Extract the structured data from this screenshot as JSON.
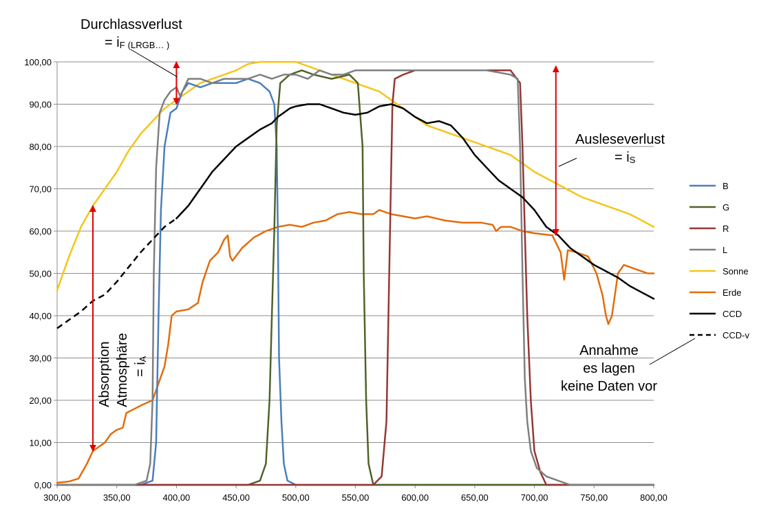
{
  "chart_data": {
    "type": "line",
    "xlim": [
      300,
      800
    ],
    "ylim": [
      0,
      100
    ],
    "grid": true,
    "legend_position": "right",
    "x_ticks": [
      "300,00",
      "350,00",
      "400,00",
      "450,00",
      "500,00",
      "550,00",
      "600,00",
      "650,00",
      "700,00",
      "750,00",
      "800,00"
    ],
    "y_ticks": [
      "0,00",
      "10,00",
      "20,00",
      "30,00",
      "40,00",
      "50,00",
      "60,00",
      "70,00",
      "80,00",
      "90,00",
      "100,00"
    ],
    "series": [
      {
        "name": "B",
        "color": "#4A7EBB",
        "dash": false,
        "points": [
          [
            300,
            0
          ],
          [
            370,
            0
          ],
          [
            380,
            1
          ],
          [
            383,
            10
          ],
          [
            385,
            40
          ],
          [
            387,
            65
          ],
          [
            390,
            80
          ],
          [
            395,
            88
          ],
          [
            400,
            89
          ],
          [
            405,
            93
          ],
          [
            410,
            95
          ],
          [
            420,
            94
          ],
          [
            430,
            95
          ],
          [
            440,
            95
          ],
          [
            450,
            95
          ],
          [
            460,
            96
          ],
          [
            470,
            95
          ],
          [
            478,
            93
          ],
          [
            482,
            90
          ],
          [
            484,
            80
          ],
          [
            485,
            60
          ],
          [
            486,
            30
          ],
          [
            488,
            15
          ],
          [
            490,
            5
          ],
          [
            493,
            1
          ],
          [
            500,
            0
          ],
          [
            800,
            0
          ]
        ]
      },
      {
        "name": "G",
        "color": "#4F6228",
        "dash": false,
        "points": [
          [
            300,
            0
          ],
          [
            460,
            0
          ],
          [
            470,
            1
          ],
          [
            475,
            5
          ],
          [
            478,
            20
          ],
          [
            480,
            40
          ],
          [
            482,
            60
          ],
          [
            484,
            85
          ],
          [
            487,
            95
          ],
          [
            495,
            97
          ],
          [
            505,
            98
          ],
          [
            515,
            97
          ],
          [
            530,
            96
          ],
          [
            545,
            97
          ],
          [
            552,
            95
          ],
          [
            556,
            80
          ],
          [
            557,
            50
          ],
          [
            559,
            20
          ],
          [
            561,
            5
          ],
          [
            565,
            0
          ],
          [
            800,
            0
          ]
        ]
      },
      {
        "name": "R",
        "color": "#943634",
        "dash": false,
        "points": [
          [
            300,
            0
          ],
          [
            550,
            0
          ],
          [
            565,
            0
          ],
          [
            572,
            2
          ],
          [
            576,
            15
          ],
          [
            579,
            60
          ],
          [
            581,
            90
          ],
          [
            583,
            96
          ],
          [
            590,
            97
          ],
          [
            600,
            98
          ],
          [
            620,
            98
          ],
          [
            640,
            98
          ],
          [
            660,
            98
          ],
          [
            680,
            98
          ],
          [
            688,
            95
          ],
          [
            690,
            80
          ],
          [
            692,
            60
          ],
          [
            694,
            40
          ],
          [
            697,
            20
          ],
          [
            700,
            8
          ],
          [
            705,
            3
          ],
          [
            710,
            0
          ],
          [
            800,
            0
          ]
        ]
      },
      {
        "name": "L",
        "color": "#7F7F7F",
        "dash": false,
        "points": [
          [
            300,
            0
          ],
          [
            365,
            0
          ],
          [
            375,
            1
          ],
          [
            378,
            5
          ],
          [
            380,
            20
          ],
          [
            381,
            50
          ],
          [
            383,
            75
          ],
          [
            386,
            88
          ],
          [
            390,
            91
          ],
          [
            395,
            93
          ],
          [
            400,
            94
          ],
          [
            403,
            92
          ],
          [
            405,
            93
          ],
          [
            410,
            96
          ],
          [
            420,
            96
          ],
          [
            430,
            95
          ],
          [
            440,
            96
          ],
          [
            450,
            96
          ],
          [
            460,
            96
          ],
          [
            470,
            97
          ],
          [
            480,
            96
          ],
          [
            490,
            97
          ],
          [
            500,
            97
          ],
          [
            510,
            96
          ],
          [
            520,
            98
          ],
          [
            530,
            97
          ],
          [
            540,
            97
          ],
          [
            550,
            98
          ],
          [
            560,
            98
          ],
          [
            570,
            98
          ],
          [
            580,
            98
          ],
          [
            600,
            98
          ],
          [
            620,
            98
          ],
          [
            640,
            98
          ],
          [
            660,
            98
          ],
          [
            680,
            97
          ],
          [
            686,
            96
          ],
          [
            688,
            80
          ],
          [
            690,
            50
          ],
          [
            692,
            25
          ],
          [
            694,
            15
          ],
          [
            697,
            8
          ],
          [
            702,
            4
          ],
          [
            710,
            2
          ],
          [
            720,
            1
          ],
          [
            730,
            0
          ],
          [
            800,
            0
          ]
        ]
      },
      {
        "name": "Sonne",
        "color": "#F5C518",
        "dash": false,
        "points": [
          [
            300,
            46
          ],
          [
            310,
            54
          ],
          [
            320,
            61
          ],
          [
            330,
            66
          ],
          [
            340,
            70
          ],
          [
            350,
            74
          ],
          [
            360,
            79
          ],
          [
            370,
            83
          ],
          [
            380,
            86
          ],
          [
            390,
            89
          ],
          [
            400,
            91
          ],
          [
            410,
            93
          ],
          [
            420,
            95
          ],
          [
            430,
            96
          ],
          [
            440,
            97
          ],
          [
            450,
            98
          ],
          [
            460,
            99.5
          ],
          [
            470,
            100
          ],
          [
            480,
            100
          ],
          [
            490,
            100
          ],
          [
            500,
            100
          ],
          [
            510,
            99
          ],
          [
            520,
            98
          ],
          [
            530,
            97
          ],
          [
            540,
            96
          ],
          [
            550,
            95
          ],
          [
            560,
            94
          ],
          [
            570,
            93
          ],
          [
            580,
            91
          ],
          [
            590,
            89
          ],
          [
            600,
            87
          ],
          [
            610,
            85
          ],
          [
            620,
            84
          ],
          [
            630,
            83
          ],
          [
            640,
            82
          ],
          [
            650,
            81
          ],
          [
            660,
            80
          ],
          [
            670,
            79
          ],
          [
            680,
            78
          ],
          [
            690,
            76
          ],
          [
            700,
            74
          ],
          [
            710,
            72.5
          ],
          [
            720,
            71
          ],
          [
            730,
            69.5
          ],
          [
            740,
            68
          ],
          [
            750,
            67
          ],
          [
            760,
            66
          ],
          [
            770,
            65
          ],
          [
            780,
            64
          ],
          [
            790,
            62.5
          ],
          [
            800,
            61
          ]
        ]
      },
      {
        "name": "Erde",
        "color": "#E36C0A",
        "dash": false,
        "points": [
          [
            300,
            0.5
          ],
          [
            310,
            0.8
          ],
          [
            318,
            1.5
          ],
          [
            325,
            5
          ],
          [
            330,
            8
          ],
          [
            335,
            9
          ],
          [
            340,
            10
          ],
          [
            345,
            12
          ],
          [
            350,
            13
          ],
          [
            355,
            13.5
          ],
          [
            358,
            17
          ],
          [
            365,
            18
          ],
          [
            372,
            19
          ],
          [
            380,
            20
          ],
          [
            385,
            24
          ],
          [
            390,
            28
          ],
          [
            393,
            33
          ],
          [
            396,
            40
          ],
          [
            400,
            41
          ],
          [
            410,
            41.5
          ],
          [
            418,
            43
          ],
          [
            422,
            48
          ],
          [
            428,
            53
          ],
          [
            435,
            55
          ],
          [
            440,
            58
          ],
          [
            443,
            59
          ],
          [
            445,
            54
          ],
          [
            447,
            53
          ],
          [
            455,
            56
          ],
          [
            465,
            58.5
          ],
          [
            475,
            60
          ],
          [
            485,
            61
          ],
          [
            495,
            61.5
          ],
          [
            505,
            61
          ],
          [
            515,
            62
          ],
          [
            525,
            62.5
          ],
          [
            535,
            64
          ],
          [
            545,
            64.5
          ],
          [
            555,
            64
          ],
          [
            565,
            64
          ],
          [
            570,
            65
          ],
          [
            580,
            64
          ],
          [
            590,
            63.5
          ],
          [
            600,
            63
          ],
          [
            610,
            63.5
          ],
          [
            625,
            62.5
          ],
          [
            640,
            62
          ],
          [
            655,
            62
          ],
          [
            665,
            61.5
          ],
          [
            668,
            60
          ],
          [
            672,
            61
          ],
          [
            680,
            61
          ],
          [
            690,
            60
          ],
          [
            700,
            59.5
          ],
          [
            715,
            59
          ],
          [
            722,
            55
          ],
          [
            725,
            48.5
          ],
          [
            728,
            55.5
          ],
          [
            735,
            55
          ],
          [
            745,
            54
          ],
          [
            752,
            50
          ],
          [
            757,
            45
          ],
          [
            760,
            40
          ],
          [
            762,
            38
          ],
          [
            765,
            40
          ],
          [
            770,
            50
          ],
          [
            775,
            52
          ],
          [
            785,
            51
          ],
          [
            795,
            50
          ],
          [
            800,
            50
          ]
        ]
      },
      {
        "name": "CCD",
        "color": "#000000",
        "dash": false,
        "points": [
          [
            400,
            63
          ],
          [
            410,
            66
          ],
          [
            420,
            70
          ],
          [
            430,
            74
          ],
          [
            440,
            77
          ],
          [
            450,
            80
          ],
          [
            460,
            82
          ],
          [
            470,
            84
          ],
          [
            480,
            85.5
          ],
          [
            485,
            87
          ],
          [
            490,
            88
          ],
          [
            495,
            89
          ],
          [
            500,
            89.5
          ],
          [
            510,
            90
          ],
          [
            520,
            90
          ],
          [
            530,
            89
          ],
          [
            540,
            88
          ],
          [
            550,
            87.5
          ],
          [
            560,
            88
          ],
          [
            570,
            89.5
          ],
          [
            580,
            90
          ],
          [
            590,
            89
          ],
          [
            600,
            87
          ],
          [
            610,
            85.5
          ],
          [
            620,
            86
          ],
          [
            630,
            85
          ],
          [
            640,
            82
          ],
          [
            650,
            78
          ],
          [
            660,
            75
          ],
          [
            670,
            72
          ],
          [
            680,
            70
          ],
          [
            690,
            68
          ],
          [
            700,
            65
          ],
          [
            710,
            61
          ],
          [
            720,
            59
          ],
          [
            730,
            56
          ],
          [
            740,
            54
          ],
          [
            750,
            52
          ],
          [
            760,
            50.5
          ],
          [
            770,
            49
          ],
          [
            780,
            47
          ],
          [
            790,
            45.5
          ],
          [
            800,
            44
          ]
        ]
      },
      {
        "name": "CCD-v",
        "color": "#000000",
        "dash": true,
        "points": [
          [
            300,
            37
          ],
          [
            310,
            39
          ],
          [
            320,
            41
          ],
          [
            330,
            43.5
          ],
          [
            340,
            45
          ],
          [
            350,
            48
          ],
          [
            360,
            51.5
          ],
          [
            370,
            55
          ],
          [
            380,
            58
          ],
          [
            390,
            61
          ],
          [
            400,
            63
          ]
        ]
      }
    ],
    "annotations": {
      "durchlass_title": "Durchlassverlust",
      "durchlass_eq": "= i",
      "durchlass_sub": "F",
      "durchlass_paren": "(LRGB… )",
      "auslese_title": "Ausleseverlust",
      "auslese_eq": "= i",
      "auslese_sub": "S",
      "absorption_line1": "Absorption",
      "absorption_line2": "Atmosphäre",
      "absorption_eq": "= i",
      "absorption_sub": "A",
      "annahme_line1": "Annahme",
      "annahme_line2": "es lagen",
      "annahme_line3": "keine Daten vor"
    },
    "arrows": [
      {
        "name": "durchlass-arrow",
        "x": 400,
        "y1": 90,
        "y2": 100
      },
      {
        "name": "auslese-arrow",
        "x": 718,
        "y1": 59,
        "y2": 99
      },
      {
        "name": "absorption-arrow",
        "x": 330,
        "y1": 8,
        "y2": 66
      }
    ],
    "arrow_color": "#E00000"
  }
}
